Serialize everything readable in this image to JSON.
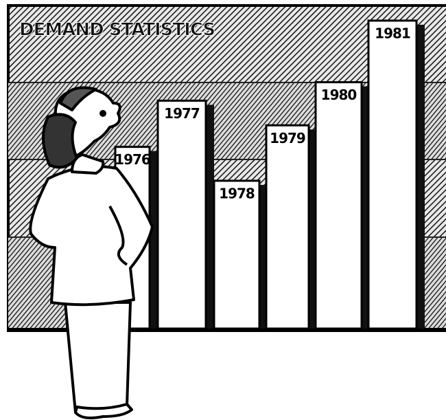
{
  "chart_data": {
    "type": "bar",
    "title": "DEMAND STATISTICS",
    "categories": [
      "1976",
      "1977",
      "1978",
      "1979",
      "1980",
      "1981"
    ],
    "values": [
      59,
      74,
      48,
      66,
      80,
      100
    ],
    "color": "#ffffff",
    "ylim": [
      0,
      100
    ]
  }
}
